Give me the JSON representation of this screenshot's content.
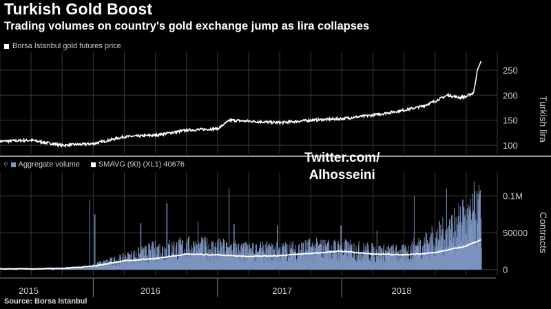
{
  "header": {
    "title": "Turkish Gold Boost",
    "subtitle": "Trading volumes on country's gold exchange jump as lira collapses"
  },
  "footer": {
    "source": "Source: Borsa Istanbul"
  },
  "watermark": {
    "line1": "Twitter.com/",
    "line2": "Alhosseini"
  },
  "colors": {
    "price": "#ffffff",
    "volume_bars": "#7b93bf",
    "smavg": "#ffffff",
    "grid": "#3a3a3a",
    "divider": "#cfcfcf"
  },
  "chart_data": [
    {
      "type": "line",
      "legend": "Borsa Istanbul gold futures price",
      "ylabel": "Turkish lira",
      "ylim": [
        85,
        280
      ],
      "yticks": [
        100,
        150,
        200,
        250
      ],
      "ytick_labels": [
        "100",
        "150",
        "200",
        "250"
      ],
      "x": [
        2014.75,
        2015.0,
        2015.25,
        2015.5,
        2015.75,
        2016.0,
        2016.25,
        2016.5,
        2016.6,
        2016.75,
        2017.0,
        2017.25,
        2017.5,
        2017.75,
        2018.0,
        2018.15,
        2018.25,
        2018.35,
        2018.45,
        2018.5,
        2018.56,
        2018.59,
        2018.62
      ],
      "values": [
        108,
        110,
        100,
        103,
        117,
        120,
        130,
        133,
        150,
        148,
        145,
        150,
        153,
        160,
        170,
        178,
        188,
        200,
        195,
        197,
        205,
        250,
        268
      ]
    },
    {
      "type": "bar",
      "series": [
        {
          "name": "Aggregate volume",
          "kind": "bar"
        },
        {
          "name": "SMAVG (90) (XL1) 40676",
          "kind": "line",
          "x": [
            2014.75,
            2015.0,
            2015.25,
            2015.5,
            2015.75,
            2016.0,
            2016.25,
            2016.5,
            2016.75,
            2017.0,
            2017.25,
            2017.5,
            2017.75,
            2018.0,
            2018.25,
            2018.5,
            2018.62
          ],
          "values": [
            1000,
            1000,
            1500,
            4500,
            12000,
            15000,
            21000,
            20000,
            18000,
            19000,
            22000,
            25000,
            21000,
            20000,
            23000,
            32000,
            41000
          ]
        }
      ],
      "ylabel": "Contracts",
      "ylim": [
        -4000,
        125000
      ],
      "yticks": [
        0,
        50000,
        100000
      ],
      "ytick_labels": [
        "0",
        "50000",
        "0.1M"
      ],
      "volume_envelope": {
        "x": [
          2014.75,
          2015.0,
          2015.25,
          2015.45,
          2015.5,
          2015.75,
          2016.0,
          2016.25,
          2016.5,
          2016.75,
          2017.0,
          2017.25,
          2017.5,
          2017.75,
          2018.0,
          2018.25,
          2018.5,
          2018.62
        ],
        "values": [
          2000,
          2000,
          3000,
          4000,
          8000,
          20000,
          35000,
          40000,
          38000,
          33000,
          33000,
          38000,
          37000,
          32000,
          30000,
          55000,
          85000,
          100000
        ]
      },
      "peaks": [
        {
          "x": 2015.47,
          "value": 95000
        },
        {
          "x": 2015.51,
          "value": 75000
        },
        {
          "x": 2015.88,
          "value": 63000
        },
        {
          "x": 2016.09,
          "value": 90000
        },
        {
          "x": 2016.34,
          "value": 65000
        },
        {
          "x": 2016.59,
          "value": 110000
        },
        {
          "x": 2016.63,
          "value": 62000
        },
        {
          "x": 2016.98,
          "value": 60000
        },
        {
          "x": 2017.49,
          "value": 60000
        },
        {
          "x": 2017.78,
          "value": 53000
        },
        {
          "x": 2018.08,
          "value": 100000
        },
        {
          "x": 2018.34,
          "value": 110000
        },
        {
          "x": 2018.47,
          "value": 95000
        },
        {
          "x": 2018.56,
          "value": 120000
        },
        {
          "x": 2018.6,
          "value": 115000
        }
      ],
      "xlim": [
        2014.75,
        2018.75
      ],
      "year_labels": [
        {
          "label": "2015",
          "x": 2014.98
        },
        {
          "label": "2016",
          "x": 2015.96
        },
        {
          "label": "2017",
          "x": 2017.02
        },
        {
          "label": "2018",
          "x": 2017.98
        }
      ],
      "year_boundaries": [
        2015.5,
        2016.5,
        2017.5
      ]
    }
  ]
}
